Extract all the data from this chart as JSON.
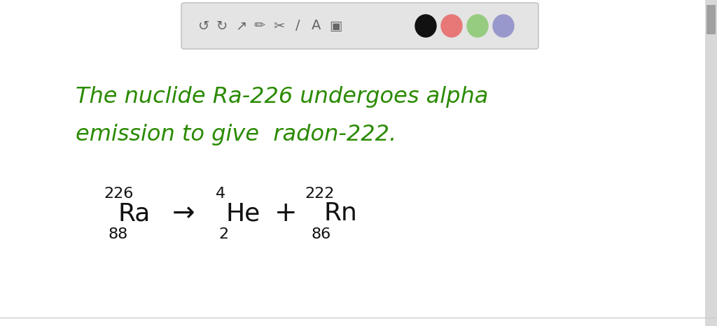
{
  "bg_color": "#ffffff",
  "toolbar_bg": "#e4e4e4",
  "toolbar_border": "#bbbbbb",
  "green_color": "#2a8a00",
  "black_color": "#111111",
  "line1": "The nuclide Ra-226 undergoes alpha",
  "line2": "emission to give  radon-222.",
  "circle_colors": [
    "#111111",
    "#e87878",
    "#96cc80",
    "#9898cc"
  ],
  "icon_color": "#666666",
  "scrollbar_color": "#d0d0d0"
}
